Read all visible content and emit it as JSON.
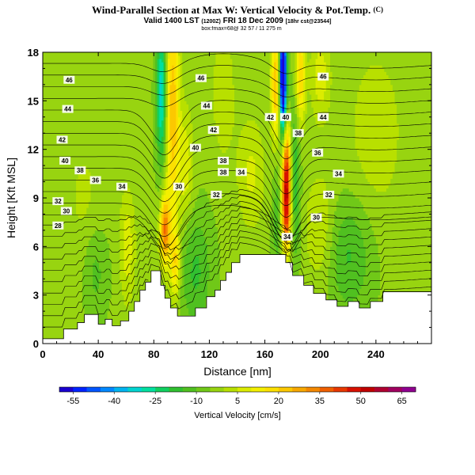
{
  "header": {
    "title": "Wind-Parallel Section at Max W: Vertical Velocity & Pot.Temp.",
    "copyright": "(C)",
    "valid": "Valid 1400 LST",
    "valid_small": "(1200Z)",
    "date": "FRI 18 Dec 2009",
    "run_small": "[18hr cst@23544]",
    "box": "box:fmax=68@ 32 57 / 11 275 m"
  },
  "colors": {
    "below_ground": "#ffffff",
    "contour": "#000000",
    "frame": "#000000"
  },
  "chart_data": {
    "type": "heatmap",
    "title": "Wind-Parallel Section at Max W: Vertical Velocity & Pot.Temp.",
    "xlabel": "Distance [nm]",
    "ylabel": "Height [Kft MSL]",
    "xlim": [
      0,
      280
    ],
    "ylim": [
      0,
      18
    ],
    "xticks": [
      0,
      40,
      80,
      120,
      160,
      200,
      240
    ],
    "yticks": [
      0,
      3,
      6,
      9,
      12,
      15,
      18
    ],
    "colorbar": {
      "label": "Vertical Velocity [cm/s]",
      "levels": [
        -60,
        -55,
        -50,
        -45,
        -40,
        -35,
        -30,
        -25,
        -20,
        -15,
        -10,
        -5,
        0,
        5,
        10,
        15,
        20,
        25,
        30,
        35,
        40,
        45,
        50,
        55,
        60,
        65,
        70
      ],
      "tick_labels": [
        "-55",
        "-40",
        "-25",
        "-10",
        "5",
        "20",
        "35",
        "50",
        "65"
      ],
      "tick_values": [
        -55,
        -40,
        -25,
        -10,
        5,
        20,
        35,
        50,
        65
      ]
    },
    "terrain": [
      [
        0,
        0.3
      ],
      [
        15,
        0.3
      ],
      [
        15,
        0.9
      ],
      [
        25,
        0.9
      ],
      [
        25,
        1.3
      ],
      [
        30,
        1.3
      ],
      [
        30,
        1.8
      ],
      [
        40,
        1.8
      ],
      [
        40,
        1.2
      ],
      [
        45,
        1.2
      ],
      [
        45,
        1.5
      ],
      [
        50,
        1.5
      ],
      [
        50,
        1.1
      ],
      [
        56,
        1.1
      ],
      [
        56,
        1.4
      ],
      [
        62,
        1.4
      ],
      [
        62,
        2.0
      ],
      [
        66,
        2.0
      ],
      [
        66,
        2.6
      ],
      [
        70,
        2.6
      ],
      [
        70,
        3.3
      ],
      [
        74,
        3.3
      ],
      [
        74,
        3.8
      ],
      [
        78,
        3.8
      ],
      [
        78,
        4.5
      ],
      [
        85,
        4.5
      ],
      [
        85,
        3.6
      ],
      [
        88,
        3.6
      ],
      [
        88,
        2.8
      ],
      [
        92,
        2.8
      ],
      [
        92,
        2.2
      ],
      [
        97,
        2.2
      ],
      [
        97,
        1.7
      ],
      [
        110,
        1.7
      ],
      [
        110,
        2.2
      ],
      [
        118,
        2.2
      ],
      [
        118,
        2.9
      ],
      [
        124,
        2.9
      ],
      [
        124,
        3.3
      ],
      [
        128,
        3.3
      ],
      [
        128,
        3.9
      ],
      [
        132,
        3.9
      ],
      [
        132,
        4.4
      ],
      [
        136,
        4.4
      ],
      [
        136,
        5.0
      ],
      [
        142,
        5.0
      ],
      [
        142,
        5.5
      ],
      [
        175,
        5.5
      ],
      [
        175,
        5.0
      ],
      [
        180,
        5.0
      ],
      [
        180,
        4.2
      ],
      [
        188,
        4.2
      ],
      [
        188,
        3.6
      ],
      [
        195,
        3.6
      ],
      [
        195,
        3.1
      ],
      [
        204,
        3.1
      ],
      [
        204,
        2.7
      ],
      [
        212,
        2.7
      ],
      [
        212,
        2.3
      ],
      [
        220,
        2.3
      ],
      [
        220,
        2.6
      ],
      [
        228,
        2.6
      ],
      [
        228,
        2.2
      ],
      [
        236,
        2.2
      ],
      [
        236,
        2.6
      ],
      [
        245,
        2.6
      ],
      [
        245,
        3.2
      ],
      [
        280,
        3.2
      ]
    ],
    "w_features": [
      {
        "x": 175.5,
        "z": 10.5,
        "sx": 2.6,
        "sz": 2.2,
        "amp": 55
      },
      {
        "x": 175.5,
        "z": 7.5,
        "sx": 2.8,
        "sz": 1.6,
        "amp": 30
      },
      {
        "x": 173,
        "z": 16.5,
        "sx": 1.8,
        "sz": 2.6,
        "amp": -75
      },
      {
        "x": 168,
        "z": 16.0,
        "sx": 2.5,
        "sz": 2.5,
        "amp": 30
      },
      {
        "x": 185.5,
        "z": 16.5,
        "sx": 2.5,
        "sz": 2.2,
        "amp": 25
      },
      {
        "x": 181,
        "z": 10.0,
        "sx": 3.0,
        "sz": 3.5,
        "amp": -18
      },
      {
        "x": 170,
        "z": 8.0,
        "sx": 3.0,
        "sz": 3.0,
        "amp": -12
      },
      {
        "x": 85.5,
        "z": 15.5,
        "sx": 2.6,
        "sz": 3.0,
        "amp": -30
      },
      {
        "x": 93.5,
        "z": 14.5,
        "sx": 3.5,
        "sz": 5.0,
        "amp": 28
      },
      {
        "x": 88.0,
        "z": 7.0,
        "sx": 2.5,
        "sz": 1.5,
        "amp": 38
      },
      {
        "x": 95.5,
        "z": 5.0,
        "sx": 2.5,
        "sz": 1.5,
        "amp": 22
      },
      {
        "x": 103,
        "z": 11.0,
        "sx": 4.0,
        "sz": 2.5,
        "amp": 12
      },
      {
        "x": 110,
        "z": 4.5,
        "sx": 8.0,
        "sz": 2.5,
        "amp": -12
      },
      {
        "x": 220,
        "z": 5.5,
        "sx": 12.0,
        "sz": 2.5,
        "amp": -12
      },
      {
        "x": 38,
        "z": 4.5,
        "sx": 6.0,
        "sz": 2.0,
        "amp": -8
      },
      {
        "x": 150,
        "z": 10.5,
        "sx": 7.0,
        "sz": 2.5,
        "amp": 10
      },
      {
        "x": 200,
        "z": 7.0,
        "sx": 8.0,
        "sz": 2.5,
        "amp": 10
      },
      {
        "x": 240,
        "z": 13.0,
        "sx": 15.0,
        "sz": 4.0,
        "amp": 7
      },
      {
        "x": 130,
        "z": 15.5,
        "sx": 6.0,
        "sz": 3.0,
        "amp": 8
      },
      {
        "x": 30,
        "z": 9.0,
        "sx": 10.0,
        "sz": 3.0,
        "amp": 5
      },
      {
        "x": 61,
        "z": 6.0,
        "sx": 4.0,
        "sz": 2.5,
        "amp": 12
      },
      {
        "x": 200,
        "z": 16.5,
        "sx": 5.0,
        "sz": 2.0,
        "amp": 12
      }
    ],
    "w_background": -4,
    "isentropes": {
      "levels": [
        26,
        27,
        28,
        29,
        30,
        31,
        32,
        33,
        34,
        35,
        36,
        37,
        38,
        39,
        40,
        41,
        42,
        43,
        44,
        45,
        46,
        47,
        48,
        49
      ],
      "labeled": [
        {
          "value": "46",
          "x": 19,
          "z": 16.3
        },
        {
          "value": "44",
          "x": 18,
          "z": 14.5
        },
        {
          "value": "42",
          "x": 14,
          "z": 12.6
        },
        {
          "value": "40",
          "x": 16,
          "z": 11.3
        },
        {
          "value": "38",
          "x": 27,
          "z": 10.7
        },
        {
          "value": "36",
          "x": 38,
          "z": 10.1
        },
        {
          "value": "34",
          "x": 57,
          "z": 9.7
        },
        {
          "value": "32",
          "x": 11,
          "z": 8.8
        },
        {
          "value": "30",
          "x": 17,
          "z": 8.2
        },
        {
          "value": "28",
          "x": 11,
          "z": 7.3
        },
        {
          "value": "46",
          "x": 114,
          "z": 16.4
        },
        {
          "value": "44",
          "x": 118,
          "z": 14.7
        },
        {
          "value": "42",
          "x": 123,
          "z": 13.2
        },
        {
          "value": "40",
          "x": 110,
          "z": 12.1
        },
        {
          "value": "38",
          "x": 130,
          "z": 11.3
        },
        {
          "value": "38",
          "x": 130,
          "z": 10.6
        },
        {
          "value": "34",
          "x": 143,
          "z": 10.6
        },
        {
          "value": "32",
          "x": 125,
          "z": 9.2
        },
        {
          "value": "30",
          "x": 98,
          "z": 9.7
        },
        {
          "value": "42",
          "x": 164,
          "z": 14.0
        },
        {
          "value": "40",
          "x": 175,
          "z": 14.0
        },
        {
          "value": "38",
          "x": 184,
          "z": 13.0
        },
        {
          "value": "36",
          "x": 198,
          "z": 11.8
        },
        {
          "value": "34",
          "x": 213,
          "z": 10.5
        },
        {
          "value": "32",
          "x": 206,
          "z": 9.2
        },
        {
          "value": "30",
          "x": 197,
          "z": 7.8
        },
        {
          "value": "34",
          "x": 176,
          "z": 6.6
        },
        {
          "value": "44",
          "x": 202,
          "z": 14.0
        },
        {
          "value": "46",
          "x": 202,
          "z": 16.5
        }
      ]
    }
  }
}
